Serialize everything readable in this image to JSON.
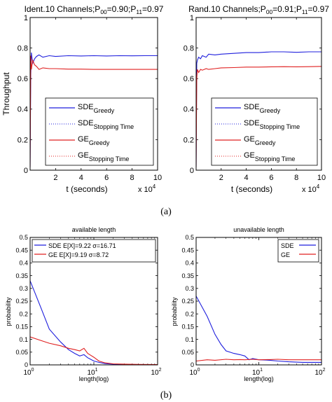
{
  "captions": {
    "a": "(a)",
    "b": "(b)"
  },
  "colors": {
    "sde": "#1f1fdd",
    "ge": "#e02020",
    "axis": "#000000",
    "legend_border": "#000000"
  },
  "chart_data": [
    {
      "id": "top-left",
      "type": "line",
      "title": "Ident.10 Channels;P",
      "title_sub1": "00",
      "title_mid": "=0.90;P",
      "title_sub2": "11",
      "title_end": "=0.97",
      "xlabel": "t (seconds)",
      "ylabel": "Throughput",
      "x_multiplier": "x 10",
      "x_multiplier_exp": "4",
      "xlim": [
        0,
        10
      ],
      "ylim": [
        0,
        1
      ],
      "xticks": [
        "2",
        "4",
        "6",
        "8",
        "10"
      ],
      "yticks": [
        "0",
        "0.2",
        "0.4",
        "0.6",
        "0.8",
        "1"
      ],
      "legend": [
        {
          "base": "SDE",
          "sub": "Greedy",
          "style": "solid",
          "color": "sde"
        },
        {
          "base": "SDE",
          "sub": "Stopping Time",
          "style": "dotted",
          "color": "sde"
        },
        {
          "base": "GE",
          "sub": "Greedy",
          "style": "solid",
          "color": "ge"
        },
        {
          "base": "GE",
          "sub": "Stopping Time",
          "style": "dotted",
          "color": "ge"
        }
      ],
      "series": [
        {
          "color": "sde",
          "style": "solid",
          "x": [
            0,
            0.05,
            0.1,
            0.2,
            0.35,
            0.5,
            0.7,
            1,
            1.5,
            2,
            3,
            4,
            5,
            6,
            7,
            8,
            9,
            10
          ],
          "y": [
            0.02,
            0.62,
            0.77,
            0.7,
            0.73,
            0.745,
            0.755,
            0.74,
            0.75,
            0.745,
            0.75,
            0.748,
            0.75,
            0.748,
            0.75,
            0.749,
            0.75,
            0.75
          ]
        },
        {
          "color": "ge",
          "style": "solid",
          "x": [
            0,
            0.05,
            0.1,
            0.2,
            0.35,
            0.5,
            0.7,
            1,
            1.5,
            2,
            3,
            4,
            5,
            6,
            7,
            8,
            9,
            10
          ],
          "y": [
            0.02,
            0.75,
            0.66,
            0.72,
            0.69,
            0.68,
            0.66,
            0.67,
            0.665,
            0.665,
            0.662,
            0.662,
            0.66,
            0.66,
            0.66,
            0.66,
            0.66,
            0.66
          ]
        }
      ]
    },
    {
      "id": "top-right",
      "type": "line",
      "title": "Rand.10 Channels;P",
      "title_sub1": "00",
      "title_mid": "=0.91;P",
      "title_sub2": "11",
      "title_end": "=0.97",
      "xlabel": "t (seconds)",
      "ylabel": "",
      "x_multiplier": "x 10",
      "x_multiplier_exp": "4",
      "xlim": [
        0,
        10
      ],
      "ylim": [
        0,
        1
      ],
      "xticks": [
        "2",
        "4",
        "6",
        "8",
        "10"
      ],
      "yticks": [
        "0",
        "0.2",
        "0.4",
        "0.6",
        "0.8",
        "1"
      ],
      "legend": [
        {
          "base": "SDE",
          "sub": "Greedy",
          "style": "solid",
          "color": "sde"
        },
        {
          "base": "SDE",
          "sub": "Stopping Time",
          "style": "dotted",
          "color": "sde"
        },
        {
          "base": "GE",
          "sub": "Greedy",
          "style": "solid",
          "color": "ge"
        },
        {
          "base": "GE",
          "sub": "Stopping Time",
          "style": "dotted",
          "color": "ge"
        }
      ],
      "series": [
        {
          "color": "sde",
          "style": "solid",
          "x": [
            0,
            0.05,
            0.1,
            0.2,
            0.35,
            0.5,
            0.8,
            1,
            1.5,
            2,
            3,
            4,
            5,
            6,
            7,
            8,
            9,
            10
          ],
          "y": [
            0.02,
            0.7,
            0.72,
            0.74,
            0.73,
            0.75,
            0.74,
            0.76,
            0.755,
            0.76,
            0.765,
            0.77,
            0.77,
            0.775,
            0.775,
            0.772,
            0.775,
            0.775
          ]
        },
        {
          "color": "ge",
          "style": "solid",
          "x": [
            0,
            0.05,
            0.1,
            0.2,
            0.35,
            0.5,
            0.8,
            1,
            1.5,
            2,
            3,
            4,
            5,
            6,
            7,
            8,
            9,
            10
          ],
          "y": [
            0.02,
            0.6,
            0.66,
            0.64,
            0.66,
            0.655,
            0.665,
            0.66,
            0.665,
            0.67,
            0.672,
            0.675,
            0.675,
            0.677,
            0.678,
            0.677,
            0.678,
            0.68
          ]
        }
      ]
    },
    {
      "id": "bottom-left",
      "type": "line",
      "title": "available length",
      "xlabel": "length(log)",
      "ylabel": "probability",
      "xscale": "log",
      "xlim": [
        1,
        100
      ],
      "ylim": [
        0,
        0.5
      ],
      "xticks_base": "10",
      "xticks_exp": [
        "0",
        "1",
        "2"
      ],
      "yticks": [
        "0",
        "0.05",
        "0.1",
        "0.15",
        "0.2",
        "0.25",
        "0.3",
        "0.35",
        "0.4",
        "0.45",
        "0.5"
      ],
      "legend": [
        {
          "label": "SDE E[X]=9.22 σ=16.71",
          "style": "solid",
          "color": "sde"
        },
        {
          "label": "GE E[X]=9.19 σ=8.72",
          "style": "solid",
          "color": "ge"
        }
      ],
      "series": [
        {
          "color": "sde",
          "style": "solid",
          "x": [
            1,
            1.5,
            2,
            3,
            4,
            5,
            6,
            7,
            8,
            10,
            12,
            15,
            20,
            30,
            50,
            100
          ],
          "y": [
            0.33,
            0.22,
            0.14,
            0.09,
            0.06,
            0.045,
            0.035,
            0.04,
            0.028,
            0.015,
            0.01,
            0.005,
            0.003,
            0.002,
            0.001,
            0.0
          ]
        },
        {
          "color": "ge",
          "style": "solid",
          "x": [
            1,
            1.5,
            2,
            3,
            4,
            5,
            6,
            7,
            8,
            10,
            12,
            15,
            20,
            30,
            50,
            100
          ],
          "y": [
            0.11,
            0.095,
            0.085,
            0.075,
            0.065,
            0.06,
            0.055,
            0.065,
            0.045,
            0.03,
            0.015,
            0.008,
            0.004,
            0.003,
            0.002,
            0.001
          ]
        }
      ]
    },
    {
      "id": "bottom-right",
      "type": "line",
      "title": "unavailable length",
      "xlabel": "length(log)",
      "ylabel": "probability",
      "xscale": "log",
      "xlim": [
        1,
        100
      ],
      "ylim": [
        0,
        0.5
      ],
      "xticks_base": "10",
      "xticks_exp": [
        "0",
        "1",
        "2"
      ],
      "yticks": [
        "0",
        "0.05",
        "0.1",
        "0.15",
        "0.2",
        "0.25",
        "0.3",
        "0.35",
        "0.4",
        "0.45",
        "0.5"
      ],
      "legend": [
        {
          "label": "SDE",
          "style": "solid",
          "color": "sde"
        },
        {
          "label": "GE",
          "style": "solid",
          "color": "ge"
        }
      ],
      "series": [
        {
          "color": "sde",
          "style": "solid",
          "x": [
            1,
            1.5,
            2,
            2.5,
            3,
            4,
            5,
            6,
            7,
            8,
            10,
            15,
            20,
            30,
            50,
            100
          ],
          "y": [
            0.27,
            0.19,
            0.12,
            0.08,
            0.055,
            0.045,
            0.04,
            0.035,
            0.02,
            0.025,
            0.02,
            0.018,
            0.015,
            0.012,
            0.01,
            0.01
          ]
        },
        {
          "color": "ge",
          "style": "solid",
          "x": [
            1,
            1.5,
            2,
            3,
            4,
            5,
            6,
            8,
            10,
            15,
            20,
            30,
            50,
            100
          ],
          "y": [
            0.015,
            0.02,
            0.018,
            0.022,
            0.02,
            0.021,
            0.02,
            0.022,
            0.02,
            0.021,
            0.022,
            0.02,
            0.02,
            0.02
          ]
        }
      ]
    }
  ]
}
